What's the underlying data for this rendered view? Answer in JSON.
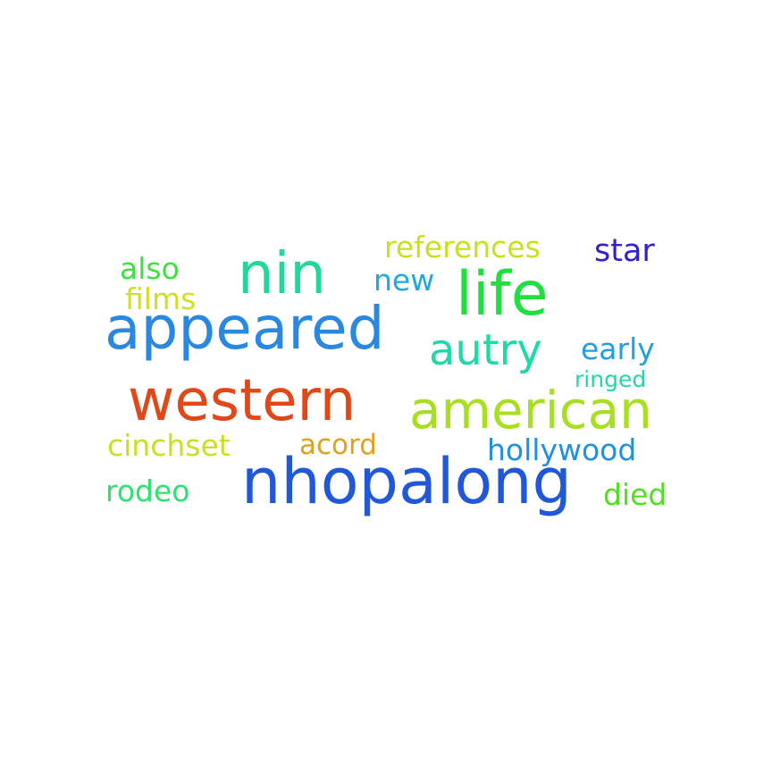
{
  "word_cloud": {
    "background": "#ffffff",
    "words": [
      {
        "key": "nhopalong",
        "text": "nhopalong",
        "color": "#2058d8"
      },
      {
        "key": "appeared",
        "text": "appeared",
        "color": "#2a88e0"
      },
      {
        "key": "western",
        "text": "western",
        "color": "#e0481a"
      },
      {
        "key": "american",
        "text": "american",
        "color": "#a8e020"
      },
      {
        "key": "life",
        "text": "life",
        "color": "#20e040"
      },
      {
        "key": "nin",
        "text": "nin",
        "color": "#20d898"
      },
      {
        "key": "autry",
        "text": "autry",
        "color": "#20d8a8"
      },
      {
        "key": "references",
        "text": "references",
        "color": "#c8e020"
      },
      {
        "key": "star",
        "text": "star",
        "color": "#3020d0"
      },
      {
        "key": "also",
        "text": "also",
        "color": "#40e040"
      },
      {
        "key": "films",
        "text": "films",
        "color": "#d0e020"
      },
      {
        "key": "new",
        "text": "new",
        "color": "#20a8e0"
      },
      {
        "key": "early",
        "text": "early",
        "color": "#20a0e0"
      },
      {
        "key": "ringed",
        "text": "ringed",
        "color": "#20d8a8"
      },
      {
        "key": "cinchset",
        "text": "cinchset",
        "color": "#c8e020"
      },
      {
        "key": "acord",
        "text": "acord",
        "color": "#e0a020"
      },
      {
        "key": "hollywood",
        "text": "hollywood",
        "color": "#2090e0"
      },
      {
        "key": "rodeo",
        "text": "rodeo",
        "color": "#30e070"
      },
      {
        "key": "died",
        "text": "died",
        "color": "#50e020"
      }
    ]
  }
}
